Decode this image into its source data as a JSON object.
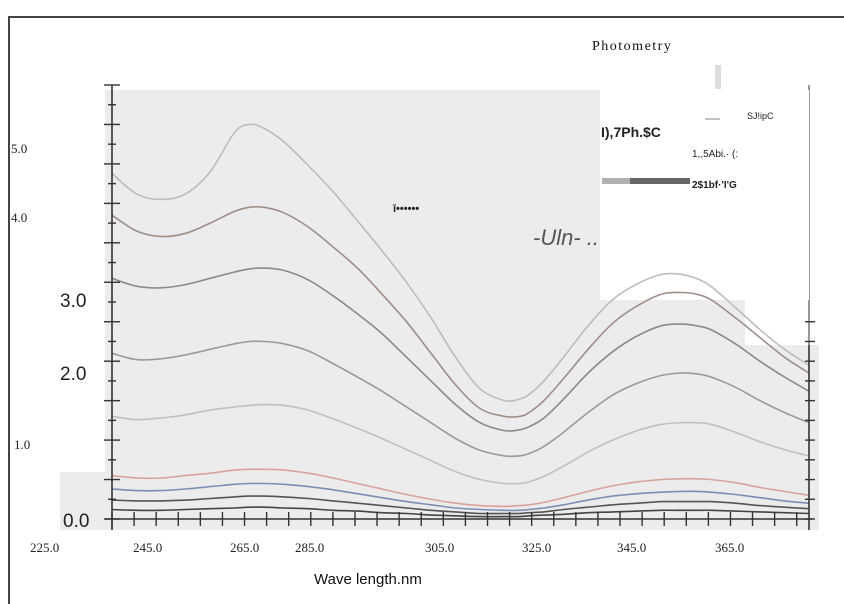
{
  "chart_data": {
    "type": "line",
    "title": "Photometry",
    "xlabel": "Wave length.nm",
    "ylabel": "",
    "xlim": [
      238,
      380
    ],
    "ylim": [
      0,
      5.5
    ],
    "x_tick_labels": [
      "225.0",
      "245.0",
      "265.0",
      "285.0",
      "305.0",
      "325.0",
      "345.0",
      "365.0"
    ],
    "y_tick_labels": [
      "0.0",
      "1.0",
      "2.0",
      "3.0",
      "4.0",
      "5.0"
    ],
    "grid": false,
    "legend_placement": "top-right",
    "legend": {
      "header": "SJ!ipC",
      "entries": [
        "I),7Ph.$C",
        "1,,5Abi.· (:",
        "2$1bf·'I'G"
      ]
    },
    "annotations": [
      "ī••••••",
      "-Uln- .."
    ],
    "x": [
      238,
      243,
      248,
      253,
      258,
      263,
      266,
      269,
      273,
      278,
      283,
      288,
      293,
      298,
      303,
      308,
      313,
      318,
      321,
      323,
      326,
      330,
      335,
      340,
      345,
      350,
      354,
      357,
      360,
      365,
      370,
      375,
      380
    ],
    "series": [
      {
        "color": "#bcbcbc",
        "values": [
          4.38,
          4.12,
          4.05,
          4.12,
          4.4,
          4.9,
          5.0,
          4.95,
          4.78,
          4.48,
          4.15,
          3.78,
          3.4,
          3.0,
          2.55,
          2.05,
          1.65,
          1.5,
          1.52,
          1.58,
          1.75,
          2.05,
          2.45,
          2.78,
          2.98,
          3.1,
          3.1,
          3.05,
          2.95,
          2.68,
          2.4,
          2.15,
          1.95
        ]
      },
      {
        "color": "#9e8e8a",
        "values": [
          3.85,
          3.65,
          3.58,
          3.62,
          3.75,
          3.9,
          3.95,
          3.95,
          3.88,
          3.7,
          3.45,
          3.18,
          2.85,
          2.5,
          2.1,
          1.7,
          1.4,
          1.3,
          1.3,
          1.35,
          1.5,
          1.78,
          2.15,
          2.48,
          2.7,
          2.85,
          2.87,
          2.85,
          2.78,
          2.55,
          2.3,
          2.05,
          1.85
        ]
      },
      {
        "color": "#8a8a8a",
        "values": [
          3.05,
          2.95,
          2.93,
          2.97,
          3.05,
          3.13,
          3.17,
          3.18,
          3.15,
          3.03,
          2.83,
          2.6,
          2.35,
          2.05,
          1.75,
          1.45,
          1.22,
          1.12,
          1.13,
          1.17,
          1.28,
          1.52,
          1.85,
          2.12,
          2.32,
          2.45,
          2.47,
          2.45,
          2.4,
          2.22,
          2.0,
          1.8,
          1.62
        ]
      },
      {
        "color": "#9a9a9a",
        "values": [
          2.1,
          2.02,
          2.03,
          2.08,
          2.15,
          2.22,
          2.25,
          2.25,
          2.22,
          2.13,
          1.97,
          1.8,
          1.62,
          1.42,
          1.22,
          1.02,
          0.87,
          0.8,
          0.8,
          0.83,
          0.92,
          1.1,
          1.35,
          1.57,
          1.72,
          1.82,
          1.85,
          1.84,
          1.8,
          1.67,
          1.5,
          1.35,
          1.22
        ]
      },
      {
        "color": "#c0c0c0",
        "values": [
          1.3,
          1.26,
          1.28,
          1.32,
          1.38,
          1.42,
          1.44,
          1.45,
          1.44,
          1.38,
          1.27,
          1.15,
          1.02,
          0.88,
          0.74,
          0.6,
          0.5,
          0.45,
          0.45,
          0.47,
          0.54,
          0.67,
          0.85,
          1.0,
          1.12,
          1.2,
          1.22,
          1.22,
          1.2,
          1.1,
          0.98,
          0.88,
          0.8
        ]
      },
      {
        "color": "#d9a29c",
        "values": [
          0.55,
          0.52,
          0.52,
          0.55,
          0.58,
          0.62,
          0.63,
          0.63,
          0.62,
          0.58,
          0.52,
          0.45,
          0.38,
          0.31,
          0.25,
          0.2,
          0.17,
          0.16,
          0.17,
          0.18,
          0.21,
          0.27,
          0.35,
          0.42,
          0.47,
          0.5,
          0.51,
          0.51,
          0.5,
          0.46,
          0.4,
          0.35,
          0.3
        ]
      },
      {
        "color": "#7b8fb5",
        "values": [
          0.38,
          0.36,
          0.36,
          0.38,
          0.41,
          0.44,
          0.45,
          0.45,
          0.44,
          0.41,
          0.37,
          0.32,
          0.27,
          0.22,
          0.18,
          0.14,
          0.12,
          0.11,
          0.11,
          0.12,
          0.14,
          0.18,
          0.24,
          0.29,
          0.32,
          0.34,
          0.35,
          0.35,
          0.34,
          0.31,
          0.27,
          0.23,
          0.2
        ]
      },
      {
        "color": "#555555",
        "values": [
          0.24,
          0.23,
          0.23,
          0.24,
          0.26,
          0.28,
          0.29,
          0.29,
          0.28,
          0.26,
          0.23,
          0.2,
          0.17,
          0.14,
          0.11,
          0.09,
          0.07,
          0.07,
          0.07,
          0.08,
          0.09,
          0.12,
          0.15,
          0.18,
          0.2,
          0.22,
          0.22,
          0.22,
          0.22,
          0.2,
          0.17,
          0.15,
          0.13
        ]
      },
      {
        "color": "#444444",
        "values": [
          0.12,
          0.11,
          0.11,
          0.12,
          0.13,
          0.14,
          0.15,
          0.15,
          0.14,
          0.13,
          0.11,
          0.1,
          0.08,
          0.07,
          0.05,
          0.04,
          0.03,
          0.03,
          0.03,
          0.04,
          0.05,
          0.06,
          0.08,
          0.09,
          0.1,
          0.11,
          0.11,
          0.11,
          0.11,
          0.1,
          0.09,
          0.08,
          0.07
        ]
      }
    ]
  }
}
